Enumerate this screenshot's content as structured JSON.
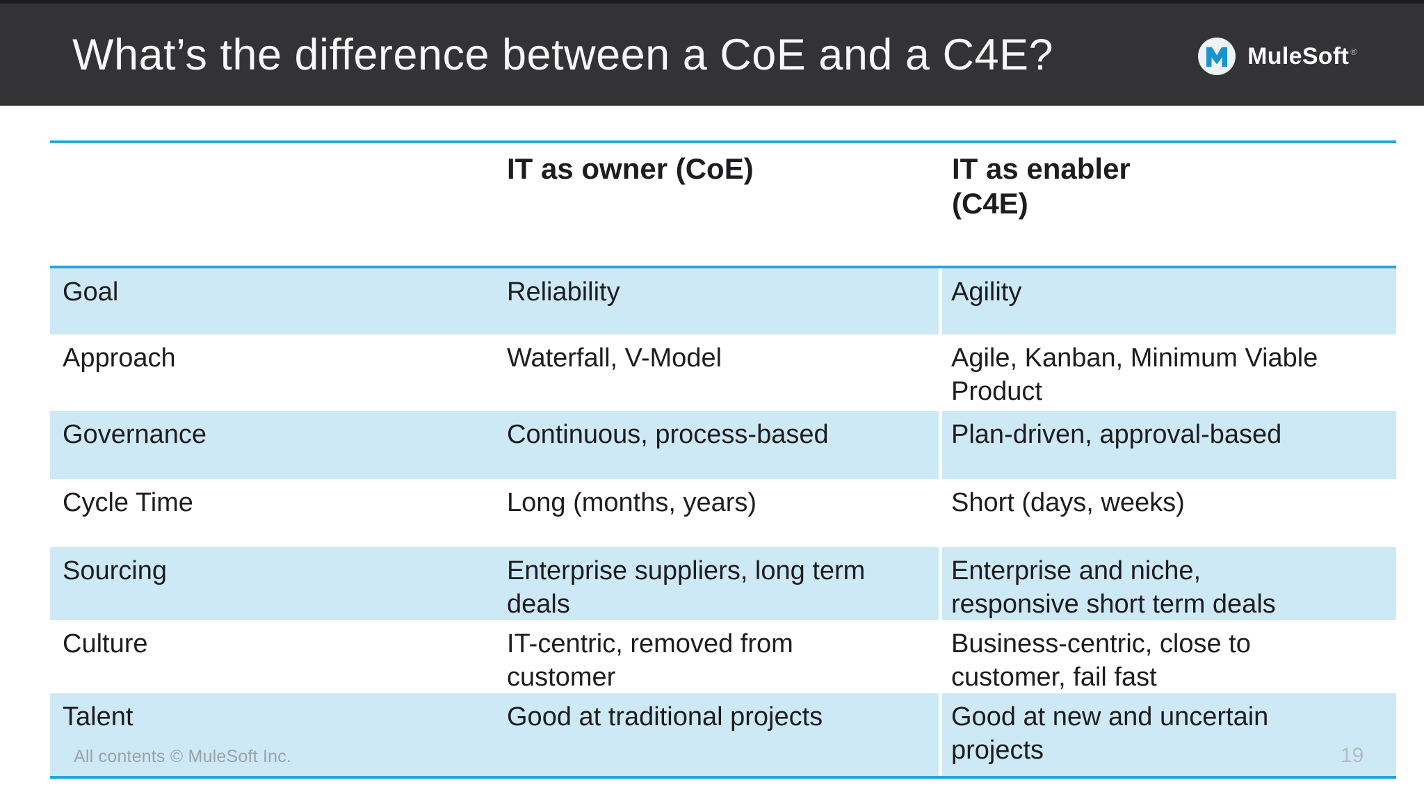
{
  "slide": {
    "title": "What’s the difference between a CoE and a C4E?",
    "footer": "All contents © MuleSoft Inc.",
    "page_number": "19"
  },
  "logo": {
    "text": "MuleSoft",
    "registered_mark": "®",
    "icon": "mulesoft-m-logo"
  },
  "colors": {
    "header_background": "#333234",
    "accent_blue_line": "#27a5da",
    "row_highlight_blue": "#cee9f6",
    "logo_blue": "#1793ce",
    "body_text": "#1d1d1f",
    "footer_gray": "#9aa2a8"
  },
  "table": {
    "columns": [
      "",
      "IT as owner (CoE)",
      "IT as enabler\n(C4E)"
    ],
    "rows": [
      {
        "label": "Goal",
        "coe": "Reliability",
        "c4e": "Agility",
        "highlight": true
      },
      {
        "label": "Approach",
        "coe": "Waterfall, V-Model",
        "c4e": "Agile, Kanban, Minimum Viable\nProduct",
        "highlight": false
      },
      {
        "label": "Governance",
        "coe": "Continuous, process-based",
        "c4e": "Plan-driven, approval-based",
        "highlight": true
      },
      {
        "label": "Cycle Time",
        "coe": "Long (months, years)",
        "c4e": "Short (days, weeks)",
        "highlight": false
      },
      {
        "label": "Sourcing",
        "coe": "Enterprise suppliers, long term\ndeals",
        "c4e": "Enterprise and niche,\nresponsive short term deals",
        "highlight": true
      },
      {
        "label": "Culture",
        "coe": "IT-centric, removed from\ncustomer",
        "c4e": "Business-centric, close to\ncustomer, fail fast",
        "highlight": false
      },
      {
        "label": "Talent",
        "coe": "Good at traditional projects",
        "c4e": "Good at new and uncertain\nprojects",
        "highlight": true
      }
    ]
  }
}
